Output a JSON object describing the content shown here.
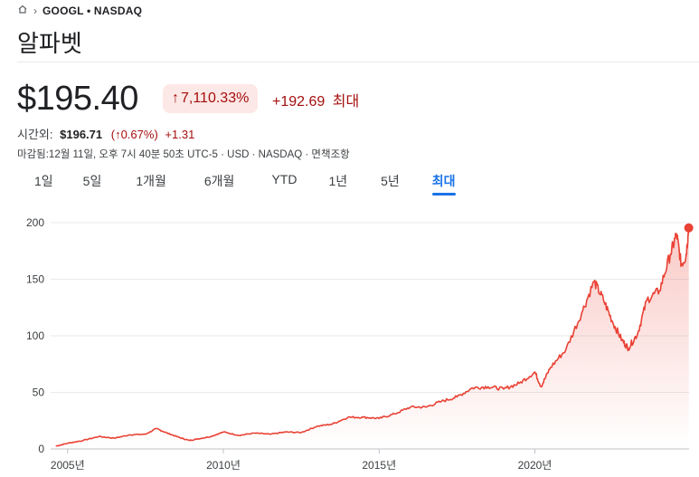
{
  "breadcrumb": {
    "home_icon": "home-icon",
    "separator": "›",
    "ticker": "GOOGL • NASDAQ"
  },
  "company_name": "알파벳",
  "quote": {
    "price": "$195.40",
    "pct_change": "7,110.33%",
    "abs_change": "+192.69",
    "period_label": "최대"
  },
  "after_hours": {
    "label": "시간외:",
    "price": "$196.71",
    "pct_change": "(↑0.67%)",
    "abs_change": "+1.31"
  },
  "footnote": "마감됨:12월 11일, 오후 7시 40분 50초 UTC-5 · USD · NASDAQ · 면책조항",
  "tabs": [
    {
      "label": "1일"
    },
    {
      "label": "5일"
    },
    {
      "label": "1개월"
    },
    {
      "label": "6개월"
    },
    {
      "label": "YTD"
    },
    {
      "label": "1년"
    },
    {
      "label": "5년"
    },
    {
      "label": "최대",
      "active": true
    }
  ],
  "colors": {
    "line": "#e94235",
    "negative": "#a50e0e",
    "accent": "#1a73e8",
    "badge_bg": "#fce8e6"
  },
  "chart_data": {
    "type": "area",
    "ylim": [
      0,
      200
    ],
    "yticks": [
      0,
      50,
      100,
      150,
      200
    ],
    "xlim": [
      2004.6,
      2024.95
    ],
    "xticks": [
      2005,
      2010,
      2015,
      2020
    ],
    "xtick_labels": [
      "2005년",
      "2010년",
      "2015년",
      "2020년"
    ],
    "grid": true,
    "series": [
      {
        "x": [
          2004.62,
          2005.0,
          2005.5,
          2006.0,
          2006.5,
          2007.0,
          2007.5,
          2007.85,
          2008.2,
          2008.6,
          2008.9,
          2009.2,
          2009.6,
          2010.0,
          2010.5,
          2011.0,
          2011.5,
          2012.0,
          2012.5,
          2013.0,
          2013.5,
          2014.0,
          2014.5,
          2015.0,
          2015.5,
          2016.0,
          2016.5,
          2017.0,
          2017.5,
          2018.0,
          2018.5,
          2019.0,
          2019.5,
          2020.0,
          2020.2,
          2020.5,
          2021.0,
          2021.5,
          2021.9,
          2022.2,
          2022.5,
          2022.8,
          2023.0,
          2023.3,
          2023.6,
          2024.0,
          2024.35,
          2024.55,
          2024.7,
          2024.85,
          2024.94
        ],
        "y": [
          2.5,
          5,
          7.5,
          11,
          9.5,
          12.5,
          13,
          18,
          14,
          10,
          7.5,
          9,
          11,
          15,
          12,
          14,
          13,
          15,
          14.5,
          20,
          22,
          28,
          28,
          27,
          31,
          37,
          37,
          42,
          46,
          54,
          55,
          53,
          58,
          68,
          55,
          72,
          88,
          120,
          148,
          132,
          112,
          96,
          89,
          102,
          132,
          140,
          172,
          190,
          163,
          170,
          195.4
        ]
      }
    ]
  }
}
